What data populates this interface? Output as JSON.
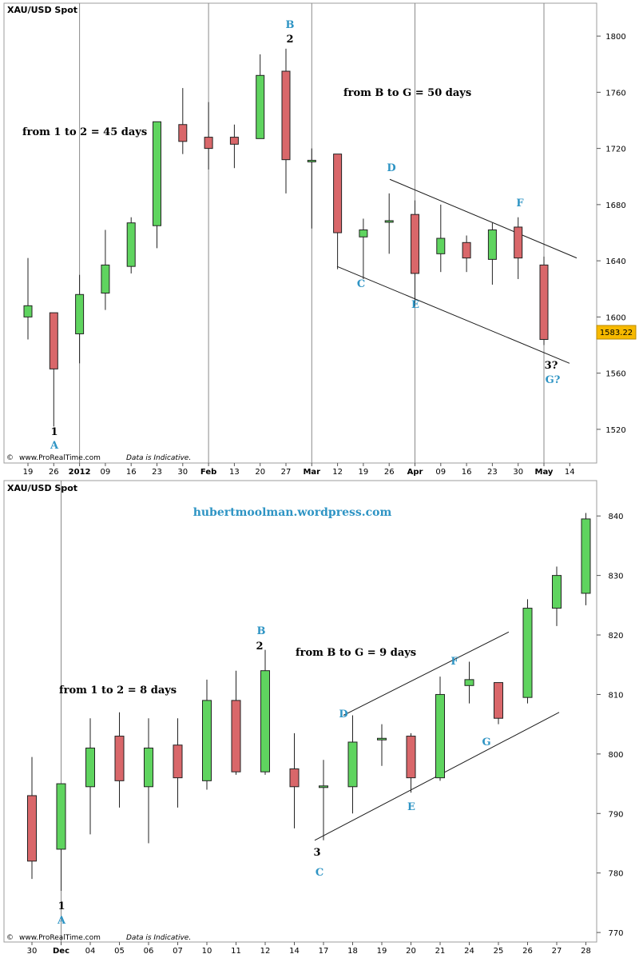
{
  "chart_data": [
    {
      "type": "candlestick",
      "title": "XAU/USD Spot",
      "ylim": [
        1500,
        1820
      ],
      "y_ticks": [
        1520,
        1560,
        1600,
        1640,
        1680,
        1720,
        1760,
        1800
      ],
      "x_labels": [
        {
          "text": "19",
          "bold": false
        },
        {
          "text": "26",
          "bold": false
        },
        {
          "text": "2012",
          "bold": true
        },
        {
          "text": "09",
          "bold": false
        },
        {
          "text": "16",
          "bold": false
        },
        {
          "text": "23",
          "bold": false
        },
        {
          "text": "30",
          "bold": false
        },
        {
          "text": "Feb",
          "bold": true
        },
        {
          "text": "13",
          "bold": false
        },
        {
          "text": "20",
          "bold": false
        },
        {
          "text": "27",
          "bold": false
        },
        {
          "text": "Mar",
          "bold": true
        },
        {
          "text": "12",
          "bold": false
        },
        {
          "text": "19",
          "bold": false
        },
        {
          "text": "26",
          "bold": false
        },
        {
          "text": "Apr",
          "bold": true
        },
        {
          "text": "09",
          "bold": false
        },
        {
          "text": "16",
          "bold": false
        },
        {
          "text": "23",
          "bold": false
        },
        {
          "text": "30",
          "bold": false
        },
        {
          "text": "May",
          "bold": true
        },
        {
          "text": "14",
          "bold": false
        }
      ],
      "candles": [
        {
          "o": 1600,
          "h": 1642,
          "l": 1584,
          "c": 1608
        },
        {
          "o": 1603,
          "h": 1603,
          "l": 1522,
          "c": 1563
        },
        {
          "o": 1588,
          "h": 1630,
          "l": 1567,
          "c": 1616
        },
        {
          "o": 1617,
          "h": 1662,
          "l": 1605,
          "c": 1637
        },
        {
          "o": 1636,
          "h": 1671,
          "l": 1631,
          "c": 1667
        },
        {
          "o": 1665,
          "h": 1739,
          "l": 1649,
          "c": 1739
        },
        {
          "o": 1737,
          "h": 1763,
          "l": 1716,
          "c": 1725
        },
        {
          "o": 1728,
          "h": 1753,
          "l": 1705,
          "c": 1720
        },
        {
          "o": 1728,
          "h": 1737,
          "l": 1706,
          "c": 1723
        },
        {
          "o": 1727,
          "h": 1787,
          "l": 1727,
          "c": 1772
        },
        {
          "o": 1775,
          "h": 1791,
          "l": 1688,
          "c": 1712
        },
        {
          "o": 1711,
          "h": 1720,
          "l": 1663,
          "c": 1711
        },
        {
          "o": 1716,
          "h": 1716,
          "l": 1634,
          "c": 1660
        },
        {
          "o": 1657,
          "h": 1670,
          "l": 1627,
          "c": 1662
        },
        {
          "o": 1667,
          "h": 1688,
          "l": 1645,
          "c": 1668
        },
        {
          "o": 1673,
          "h": 1683,
          "l": 1608,
          "c": 1631
        },
        {
          "o": 1645,
          "h": 1680,
          "l": 1632,
          "c": 1656
        },
        {
          "o": 1653,
          "h": 1658,
          "l": 1632,
          "c": 1642
        },
        {
          "o": 1641,
          "h": 1667,
          "l": 1623,
          "c": 1662
        },
        {
          "o": 1664,
          "h": 1671,
          "l": 1627,
          "c": 1642
        },
        {
          "o": 1637,
          "h": 1643,
          "l": 1580,
          "c": 1584
        }
      ],
      "price_tag": "1583.22",
      "annotations": {
        "from_1_to_2": "from 1 to 2 = 45 days",
        "from_b_to_g": "from B to G = 50 days",
        "label_1": "1",
        "label_a": "A",
        "label_2": "2",
        "label_b": "B",
        "label_c": "C",
        "label_d": "D",
        "label_e": "E",
        "label_f": "F",
        "label_3q": "3?",
        "label_gq": "G?"
      },
      "footer": {
        "logo": "©",
        "site": "www.ProRealTime.com",
        "note": "Data is Indicative."
      }
    },
    {
      "type": "candlestick",
      "title": "XAU/USD Spot",
      "subtitle": "hubertmoolman.wordpress.com",
      "ylim": [
        768,
        845
      ],
      "y_ticks": [
        770,
        780,
        790,
        800,
        810,
        820,
        830,
        840
      ],
      "x_labels": [
        {
          "text": "30",
          "bold": false
        },
        {
          "text": "Dec",
          "bold": true
        },
        {
          "text": "04",
          "bold": false
        },
        {
          "text": "05",
          "bold": false
        },
        {
          "text": "06",
          "bold": false
        },
        {
          "text": "07",
          "bold": false
        },
        {
          "text": "10",
          "bold": false
        },
        {
          "text": "11",
          "bold": false
        },
        {
          "text": "12",
          "bold": false
        },
        {
          "text": "14",
          "bold": false
        },
        {
          "text": "17",
          "bold": false
        },
        {
          "text": "18",
          "bold": false
        },
        {
          "text": "19",
          "bold": false
        },
        {
          "text": "20",
          "bold": false
        },
        {
          "text": "21",
          "bold": false
        },
        {
          "text": "24",
          "bold": false
        },
        {
          "text": "25",
          "bold": false
        },
        {
          "text": "26",
          "bold": false
        },
        {
          "text": "27",
          "bold": false
        },
        {
          "text": "28",
          "bold": false
        }
      ],
      "candles": [
        {
          "o": 793,
          "h": 799.5,
          "l": 779,
          "c": 782
        },
        {
          "o": 784,
          "h": 795,
          "l": 777,
          "c": 795
        },
        {
          "o": 794.5,
          "h": 806,
          "l": 786.5,
          "c": 801
        },
        {
          "o": 803,
          "h": 807,
          "l": 791,
          "c": 795.5
        },
        {
          "o": 794.5,
          "h": 806,
          "l": 785,
          "c": 801
        },
        {
          "o": 801.5,
          "h": 806,
          "l": 791,
          "c": 796
        },
        {
          "o": 795.5,
          "h": 812.5,
          "l": 794,
          "c": 809
        },
        {
          "o": 809,
          "h": 814,
          "l": 796.5,
          "c": 797
        },
        {
          "o": 797,
          "h": 817.5,
          "l": 796.5,
          "c": 814
        },
        {
          "o": 797.5,
          "h": 803.5,
          "l": 787.5,
          "c": 794.5
        },
        {
          "o": 794.5,
          "h": 799,
          "l": 785.5,
          "c": 794.5
        },
        {
          "o": 794.5,
          "h": 806.5,
          "l": 790,
          "c": 802
        },
        {
          "o": 802.5,
          "h": 805,
          "l": 798,
          "c": 802.5
        },
        {
          "o": 803,
          "h": 803.5,
          "l": 793.5,
          "c": 796
        },
        {
          "o": 796,
          "h": 813,
          "l": 795.5,
          "c": 810
        },
        {
          "o": 811.5,
          "h": 815.5,
          "l": 808.5,
          "c": 812.5
        },
        {
          "o": 812,
          "h": 812,
          "l": 805,
          "c": 806
        },
        {
          "o": 809.5,
          "h": 826,
          "l": 808.5,
          "c": 824.5
        },
        {
          "o": 824.5,
          "h": 831.5,
          "l": 821.5,
          "c": 830
        },
        {
          "o": 827,
          "h": 840.5,
          "l": 825,
          "c": 839.5
        }
      ],
      "annotations": {
        "from_1_to_2": "from 1 to 2 = 8 days",
        "from_b_to_g": "from B to G = 9 days",
        "label_1": "1",
        "label_a": "A",
        "label_2": "2",
        "label_b": "B",
        "label_3": "3",
        "label_c": "C",
        "label_d": "D",
        "label_e": "E",
        "label_f": "F",
        "label_g": "G"
      },
      "footer": {
        "logo": "©",
        "site": "www.ProRealTime.com",
        "note": "Data is Indicative."
      }
    }
  ],
  "colors": {
    "up": "#5fd45f",
    "down": "#d9676a",
    "frame": "#9c9c9c",
    "accent": "#2e94c4",
    "tag": "#f7b900"
  }
}
